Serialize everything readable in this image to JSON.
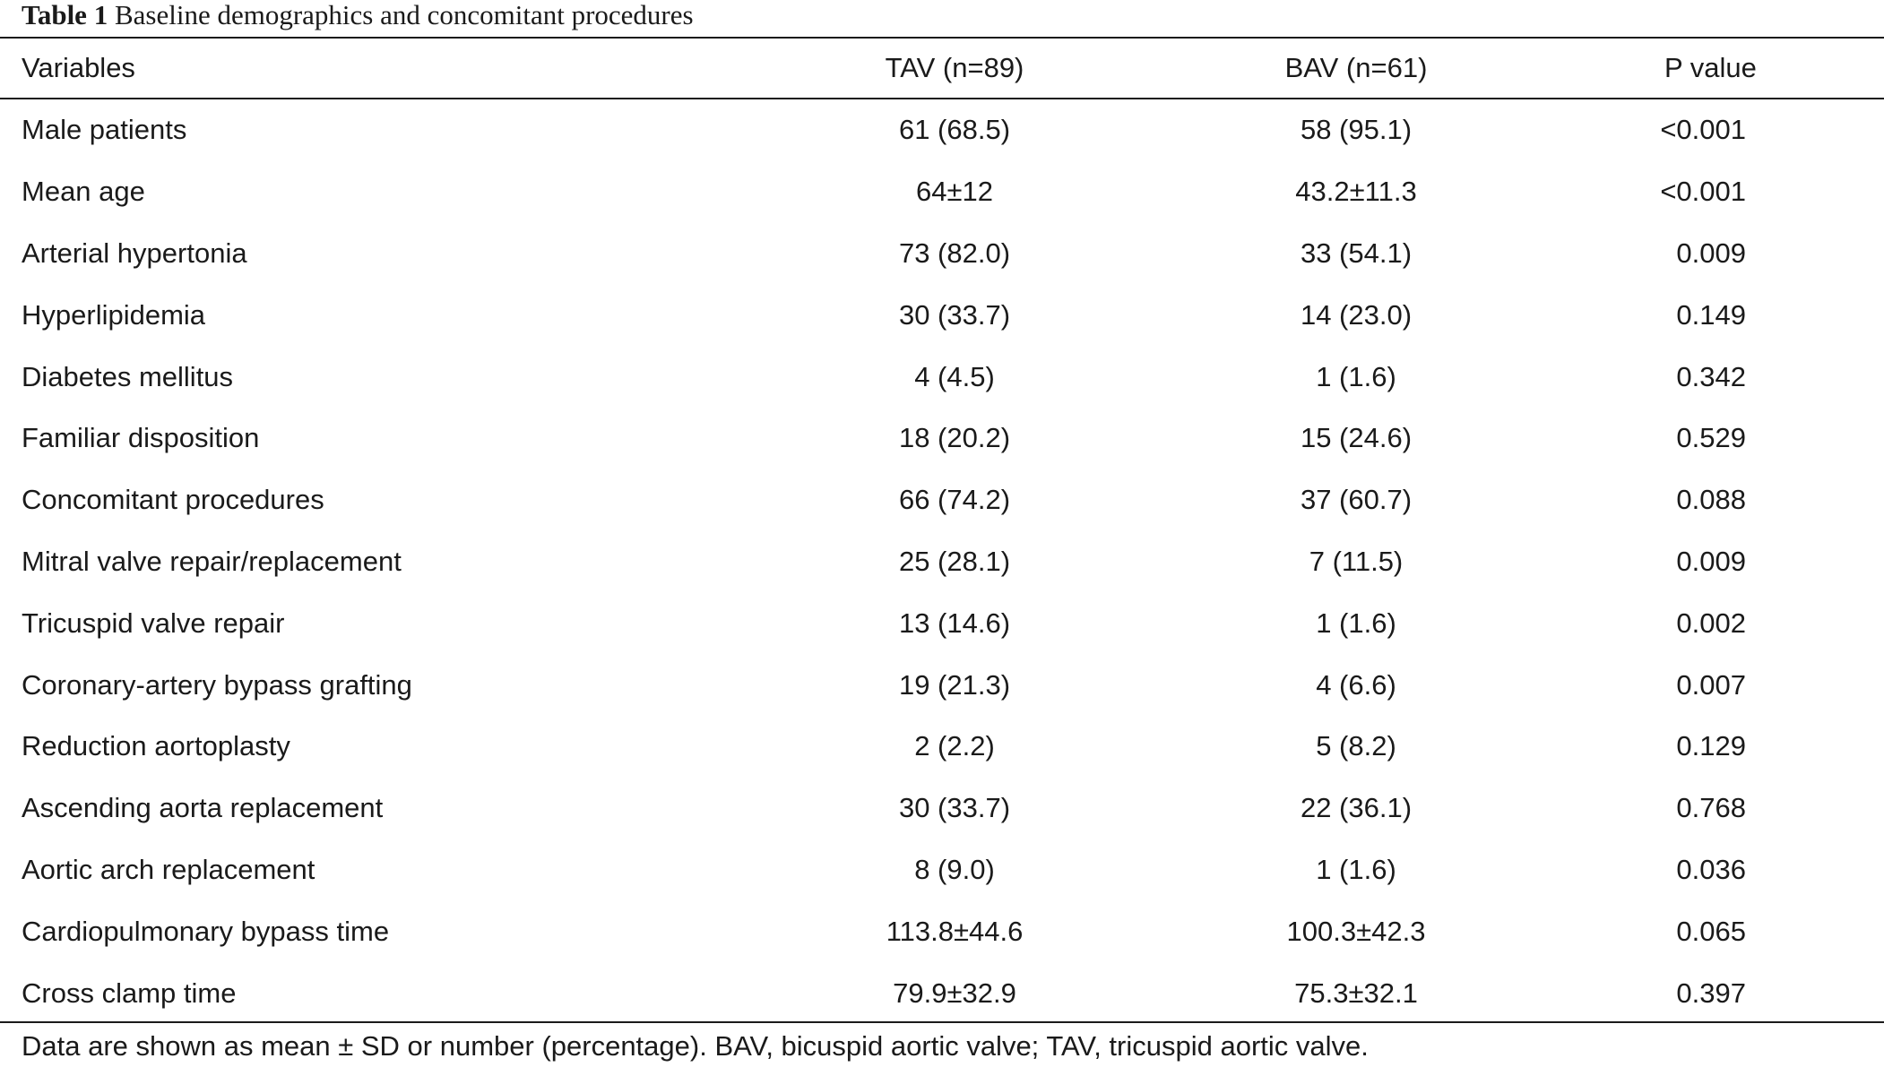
{
  "caption": {
    "label": "Table 1",
    "text": "Baseline demographics and concomitant procedures"
  },
  "table": {
    "headers": {
      "variables": "Variables",
      "tav": "TAV (n=89)",
      "bav": "BAV (n=61)",
      "p_value": "P value"
    },
    "rows": [
      {
        "variable": "Male patients",
        "tav": "61 (68.5)",
        "bav": "58 (95.1)",
        "p": "<0.001"
      },
      {
        "variable": "Mean age",
        "tav": "64±12",
        "bav": "43.2±11.3",
        "p": "<0.001"
      },
      {
        "variable": "Arterial hypertonia",
        "tav": "73 (82.0)",
        "bav": "33 (54.1)",
        "p": "0.009"
      },
      {
        "variable": "Hyperlipidemia",
        "tav": "30 (33.7)",
        "bav": "14 (23.0)",
        "p": "0.149"
      },
      {
        "variable": "Diabetes mellitus",
        "tav": "4 (4.5)",
        "bav": "1 (1.6)",
        "p": "0.342"
      },
      {
        "variable": "Familiar disposition",
        "tav": "18 (20.2)",
        "bav": "15 (24.6)",
        "p": "0.529"
      },
      {
        "variable": "Concomitant procedures",
        "tav": "66 (74.2)",
        "bav": "37 (60.7)",
        "p": "0.088"
      },
      {
        "variable": "Mitral valve repair/replacement",
        "tav": "25 (28.1)",
        "bav": "7 (11.5)",
        "p": "0.009"
      },
      {
        "variable": "Tricuspid valve repair",
        "tav": "13 (14.6)",
        "bav": "1 (1.6)",
        "p": "0.002"
      },
      {
        "variable": "Coronary-artery bypass grafting",
        "tav": "19 (21.3)",
        "bav": "4 (6.6)",
        "p": "0.007"
      },
      {
        "variable": "Reduction aortoplasty",
        "tav": "2 (2.2)",
        "bav": "5 (8.2)",
        "p": "0.129"
      },
      {
        "variable": "Ascending aorta replacement",
        "tav": "30 (33.7)",
        "bav": "22 (36.1)",
        "p": "0.768"
      },
      {
        "variable": "Aortic arch replacement",
        "tav": "8 (9.0)",
        "bav": "1 (1.6)",
        "p": "0.036"
      },
      {
        "variable": "Cardiopulmonary bypass time",
        "tav": "113.8±44.6",
        "bav": "100.3±42.3",
        "p": "0.065"
      },
      {
        "variable": "Cross clamp time",
        "tav": "79.9±32.9",
        "bav": "75.3±32.1",
        "p": "0.397"
      }
    ]
  },
  "footnote": "Data are shown as mean ± SD or number (percentage). BAV, bicuspid aortic valve; TAV, tricuspid aortic valve."
}
